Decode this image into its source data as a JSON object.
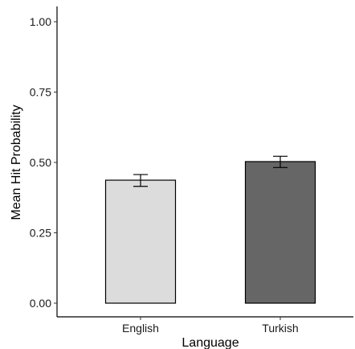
{
  "chart_data": {
    "type": "bar",
    "title": "",
    "xlabel": "Language",
    "ylabel": "Mean Hit Probability",
    "categories": [
      "English",
      "Turkish"
    ],
    "values": [
      0.437,
      0.503
    ],
    "error_low": [
      0.415,
      0.482
    ],
    "error_high": [
      0.457,
      0.522
    ],
    "ylim": [
      0,
      1.0
    ],
    "yticks": [
      0,
      0.25,
      0.5,
      0.75,
      1.0
    ],
    "ytick_labels": [
      "0.00",
      "0.25",
      "0.50",
      "0.75",
      "1.00"
    ],
    "grid": false,
    "legend": "none",
    "colors": [
      "#dcdcdc",
      "#666666"
    ],
    "bar_stroke": "#000000"
  }
}
